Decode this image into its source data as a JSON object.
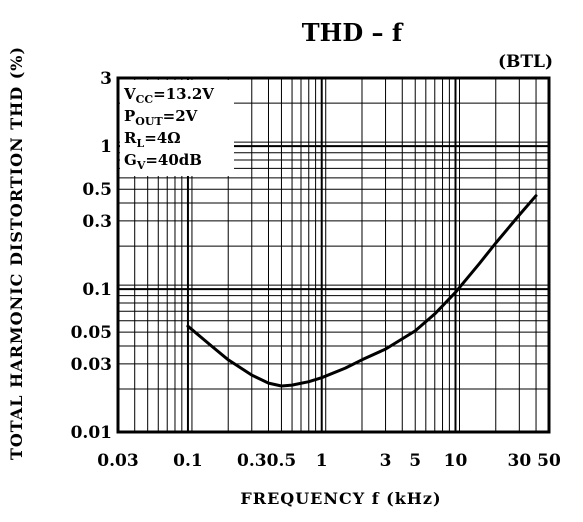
{
  "chart_data": {
    "type": "line",
    "title": "THD  –  f",
    "subtitle": "(BTL)",
    "xlabel": "FREQUENCY   f    (kHz)",
    "ylabel": "TOTAL  HARMONIC  DISTORTION  THD   (%)",
    "x_scale": "log",
    "y_scale": "log",
    "xlim": [
      0.03,
      50
    ],
    "ylim": [
      0.01,
      3
    ],
    "grid": true,
    "x_ticks": [
      {
        "value": 0.03,
        "label": "0.03"
      },
      {
        "value": 0.1,
        "label": "0.1"
      },
      {
        "value": 0.3,
        "label": "0.3"
      },
      {
        "value": 0.5,
        "label": "0.5"
      },
      {
        "value": 1,
        "label": "1"
      },
      {
        "value": 3,
        "label": "3"
      },
      {
        "value": 5,
        "label": "5"
      },
      {
        "value": 10,
        "label": "10"
      },
      {
        "value": 30,
        "label": "30"
      },
      {
        "value": 50,
        "label": "50"
      }
    ],
    "y_ticks": [
      {
        "value": 0.01,
        "label": "0.01"
      },
      {
        "value": 0.03,
        "label": "0.03"
      },
      {
        "value": 0.05,
        "label": "0.05"
      },
      {
        "value": 0.1,
        "label": "0.1"
      },
      {
        "value": 0.3,
        "label": "0.3"
      },
      {
        "value": 0.5,
        "label": "0.5"
      },
      {
        "value": 1,
        "label": "1"
      },
      {
        "value": 3,
        "label": "3"
      }
    ],
    "conditions": [
      {
        "main": "V",
        "sub": "CC",
        "rest": "=13.2V"
      },
      {
        "main": "P",
        "sub": "OUT",
        "rest": "=2V"
      },
      {
        "main": "R",
        "sub": "L",
        "rest": "=4Ω"
      },
      {
        "main": "G",
        "sub": "V",
        "rest": "=40dB"
      }
    ],
    "series": [
      {
        "x": [
          0.1,
          0.15,
          0.2,
          0.3,
          0.4,
          0.5,
          0.6,
          0.8,
          1,
          1.5,
          2,
          3,
          5,
          7,
          10,
          15,
          20,
          30,
          40
        ],
        "y": [
          0.055,
          0.04,
          0.032,
          0.025,
          0.022,
          0.021,
          0.0213,
          0.0225,
          0.024,
          0.028,
          0.032,
          0.038,
          0.051,
          0.067,
          0.095,
          0.15,
          0.21,
          0.33,
          0.45
        ]
      }
    ]
  }
}
